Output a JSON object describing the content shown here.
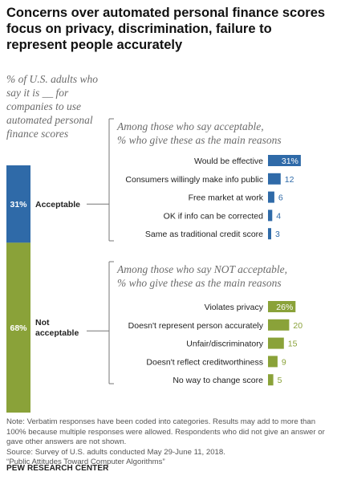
{
  "title": "Concerns over automated personal finance scores focus on privacy, discrimination, failure to represent people accurately",
  "subtitle": "% of U.S. adults who say it is __ for companies to use automated personal finance scores",
  "chart_data": {
    "type": "bar",
    "stack": {
      "segments": [
        {
          "label": "Acceptable",
          "value": 31,
          "value_label": "31%",
          "color": "#2f6aa8"
        },
        {
          "label": "Not acceptable",
          "value": 68,
          "value_label": "68%",
          "color": "#8aa239"
        }
      ]
    },
    "groups": [
      {
        "title_line1": "Among those who say acceptable,",
        "title_line2": "% who give these as the main reasons",
        "color": "#2f6aa8",
        "value_color": "#2f6aa8",
        "categories": [
          "Would be effective",
          "Consumers willingly make info public",
          "Free market at work",
          "OK if info can be corrected",
          "Same as traditional credit score"
        ],
        "values": [
          31,
          12,
          6,
          4,
          3
        ],
        "value_labels": [
          "31%",
          "12",
          "6",
          "4",
          "3"
        ]
      },
      {
        "title_line1": "Among those who say NOT acceptable,",
        "title_line2": "% who give these as the main reasons",
        "color": "#8aa239",
        "value_color": "#8aa239",
        "categories": [
          "Violates privacy",
          "Doesn't represent person accurately",
          "Unfair/discriminatory",
          "Doesn't reflect creditworthiness",
          "No way to change score"
        ],
        "values": [
          26,
          20,
          15,
          9,
          5
        ],
        "value_labels": [
          "26%",
          "20",
          "15",
          "9",
          "5"
        ]
      }
    ]
  },
  "notes": [
    "Note: Verbatim responses have been coded into categories. Results may add to more than 100% because multiple responses were allowed. Respondents who did not give an answer or gave other answers are not shown.",
    "Source: Survey of U.S. adults conducted May 29-June 11, 2018.",
    "“Public Attitudes Toward Computer Algorithms”"
  ],
  "source_org": "PEW RESEARCH CENTER"
}
